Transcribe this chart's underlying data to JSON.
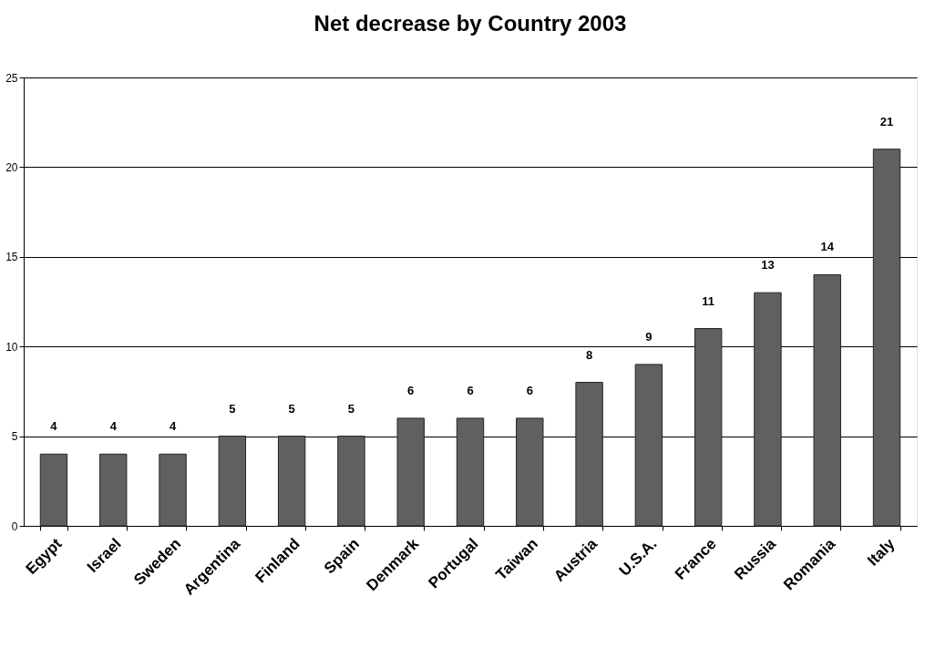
{
  "chart_data": {
    "type": "bar",
    "title": "Net decrease by Country 2003",
    "categories": [
      "Egypt",
      "Israel",
      "Sweden",
      "Argentina",
      "Finland",
      "Spain",
      "Denmark",
      "Portugal",
      "Taiwan",
      "Austria",
      "U.S.A.",
      "France",
      "Russia",
      "Romania",
      "Italy"
    ],
    "values": [
      4,
      4,
      4,
      5,
      5,
      5,
      6,
      6,
      6,
      8,
      9,
      11,
      13,
      14,
      21
    ],
    "color": "#606060",
    "ylim": [
      0,
      25
    ],
    "yticks": [
      0,
      5,
      10,
      15,
      20,
      25
    ],
    "grid": "y",
    "data_labels": true
  }
}
